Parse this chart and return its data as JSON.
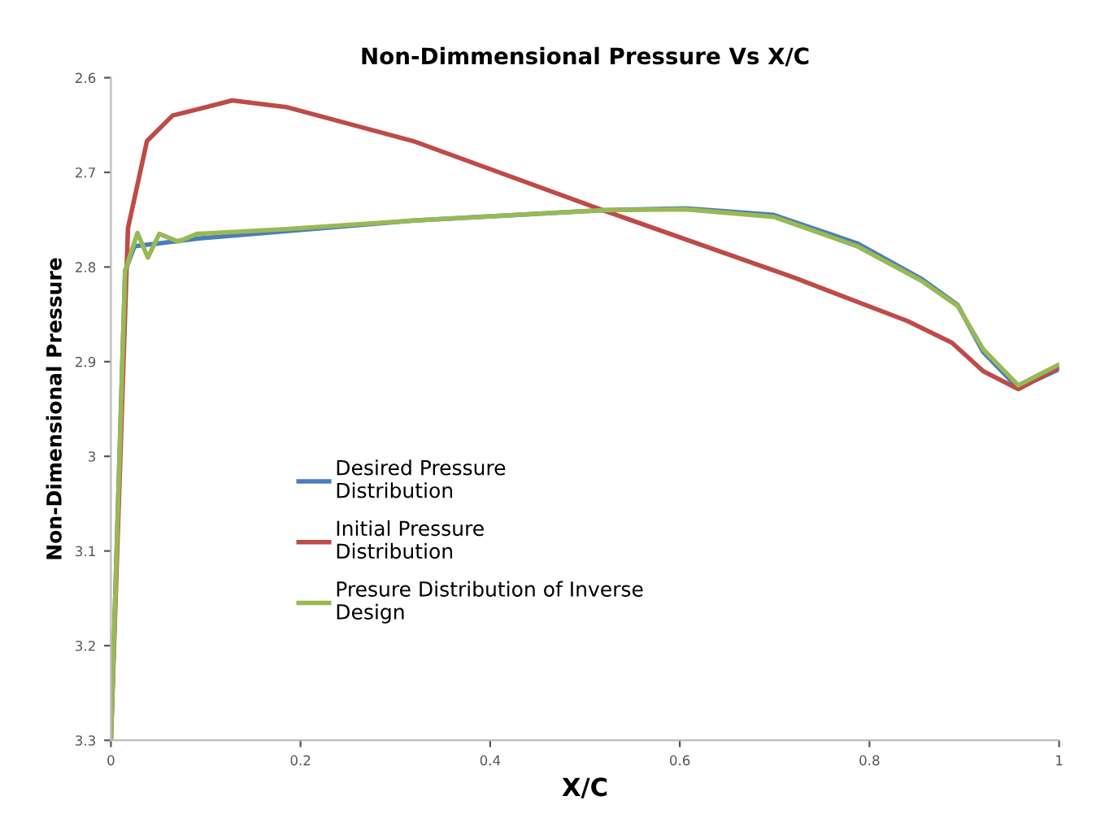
{
  "chart_data": {
    "type": "line",
    "title": "Non-Dimmensional Pressure Vs X/C",
    "xlabel": "X/C",
    "ylabel": "Non-Dimensional Pressure",
    "xlim": [
      0,
      1
    ],
    "xticks": [
      0,
      0.2,
      0.4,
      0.6,
      0.8,
      1
    ],
    "ylim": [
      3.3,
      2.6
    ],
    "yticks": [
      2.6,
      2.7,
      2.8,
      2.9,
      3,
      3.1,
      3.2,
      3.3
    ],
    "grid": false,
    "legend": "center",
    "marker": "none",
    "line_style": "solid",
    "series": [
      {
        "name": "Desired Pressure Distribution",
        "color": "#4a7ebb",
        "x": [
          0,
          0.015,
          0.025,
          0.051,
          0.091,
          0.185,
          0.319,
          0.519,
          0.606,
          0.699,
          0.787,
          0.854,
          0.893,
          0.92,
          0.957,
          1.0
        ],
        "values": [
          3.3,
          2.804,
          2.778,
          2.775,
          2.77,
          2.762,
          2.751,
          2.74,
          2.738,
          2.745,
          2.775,
          2.812,
          2.84,
          2.89,
          2.928,
          2.908
        ]
      },
      {
        "name": "Initial Pressure Distribution",
        "color": "#be4b48",
        "x": [
          0,
          0.018,
          0.038,
          0.065,
          0.128,
          0.185,
          0.319,
          0.519,
          0.72,
          0.84,
          0.887,
          0.92,
          0.957,
          1.0
        ],
        "values": [
          3.3,
          2.759,
          2.667,
          2.64,
          2.624,
          2.631,
          2.667,
          2.74,
          2.811,
          2.857,
          2.88,
          2.91,
          2.929,
          2.906
        ]
      },
      {
        "name": "Presure Distribution of Inverse Design",
        "color": "#98b954",
        "x": [
          0,
          0.015,
          0.028,
          0.039,
          0.051,
          0.071,
          0.091,
          0.185,
          0.319,
          0.519,
          0.606,
          0.699,
          0.787,
          0.854,
          0.893,
          0.92,
          0.957,
          1.0
        ],
        "values": [
          3.3,
          2.804,
          2.764,
          2.79,
          2.765,
          2.773,
          2.765,
          2.76,
          2.751,
          2.74,
          2.739,
          2.747,
          2.778,
          2.814,
          2.841,
          2.887,
          2.925,
          2.903
        ]
      }
    ]
  }
}
